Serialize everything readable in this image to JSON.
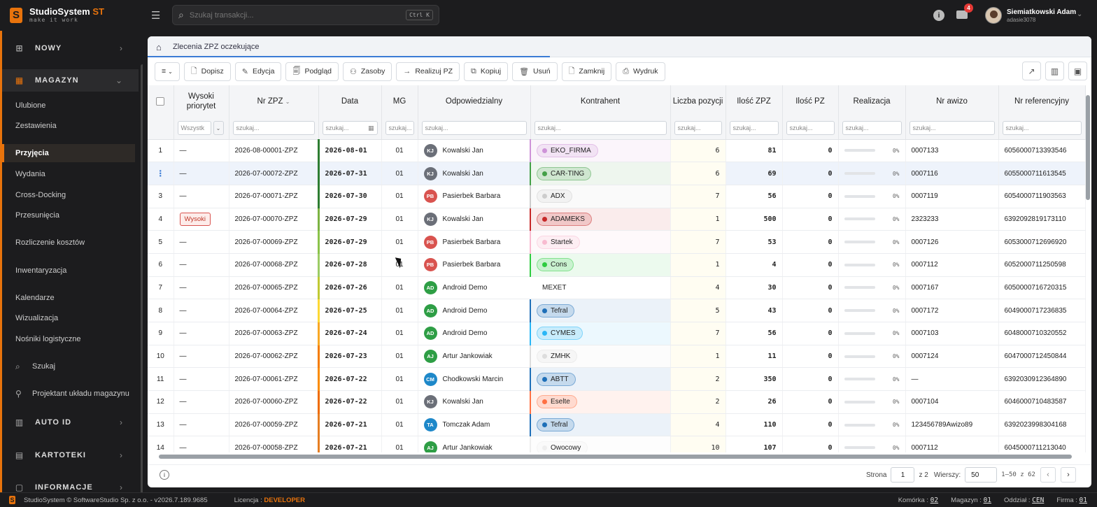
{
  "app": {
    "name": "StudioSystem",
    "name_suffix": "ST",
    "tagline": "make it work"
  },
  "search": {
    "placeholder": "Szukaj transakcji...",
    "shortcut": "Ctrl K"
  },
  "user": {
    "name": "Siemiatkowski Adam",
    "login": "adasie3078",
    "notifications": "4"
  },
  "sidebar": {
    "nowy": "NOWY",
    "magazyn": "MAGAZYN",
    "items": [
      "Ulubione",
      "Zestawienia",
      "Przyjęcia",
      "Wydania",
      "Cross-Docking",
      "Przesunięcia",
      "Rozliczenie kosztów",
      "Inwentaryzacja",
      "Kalendarze",
      "Wizualizacja",
      "Nośniki logistyczne",
      "Szukaj",
      "Projektant układu magazynu"
    ],
    "auto_id": "AUTO ID",
    "kartoteki": "KARTOTEKI",
    "informacje": "INFORMACJE"
  },
  "tab": {
    "title": "Zlecenia ZPZ oczekujące"
  },
  "toolbar": {
    "dopisz": "Dopisz",
    "edycja": "Edycja",
    "podglad": "Podgląd",
    "zasoby": "Zasoby",
    "realizuj": "Realizuj PZ",
    "kopiuj": "Kopiuj",
    "usun": "Usuń",
    "zamknij": "Zamknij",
    "wydruk": "Wydruk"
  },
  "columns": {
    "priority": "Wysoki priorytet",
    "nr": "Nr ZPZ",
    "date": "Data",
    "mg": "MG",
    "resp": "Odpowiedzialny",
    "contractor": "Kontrahent",
    "positions": "Liczba pozycji",
    "qty_zpz": "Ilość ZPZ",
    "qty_pz": "Ilość PZ",
    "realization": "Realizacja",
    "awizo": "Nr awizo",
    "ref": "Nr referencyjny"
  },
  "filters": {
    "all": "Wszystk",
    "placeholder": "szukaj..."
  },
  "rows": [
    {
      "n": "1",
      "prio": "—",
      "nr": "2026-08-00001-ZPZ",
      "date": "2026-08-01",
      "mg": "01",
      "ini": "KJ",
      "person": "Kowalski Jan",
      "firm": "EKO_FIRMA",
      "pos": "6",
      "zpz": "81",
      "pz": "0",
      "pct": "0%",
      "awizo": "0007133",
      "ref": "6056000713393546"
    },
    {
      "n": "⋮",
      "prio": "—",
      "nr": "2026-07-00072-ZPZ",
      "date": "2026-07-31",
      "mg": "01",
      "ini": "KJ",
      "person": "Kowalski Jan",
      "firm": "CAR-TING",
      "pos": "6",
      "zpz": "69",
      "pz": "0",
      "pct": "0%",
      "awizo": "0007116",
      "ref": "6055000711613545"
    },
    {
      "n": "3",
      "prio": "—",
      "nr": "2026-07-00071-ZPZ",
      "date": "2026-07-30",
      "mg": "01",
      "ini": "PB",
      "person": "Pasierbek Barbara",
      "firm": "ADX",
      "pos": "7",
      "zpz": "56",
      "pz": "0",
      "pct": "0%",
      "awizo": "0007119",
      "ref": "6054000711903563"
    },
    {
      "n": "4",
      "prio": "Wysoki",
      "nr": "2026-07-00070-ZPZ",
      "date": "2026-07-29",
      "mg": "01",
      "ini": "KJ",
      "person": "Kowalski Jan",
      "firm": "ADAMEKS",
      "pos": "1",
      "zpz": "500",
      "pz": "0",
      "pct": "0%",
      "awizo": "2323233",
      "ref": "6392092819173110"
    },
    {
      "n": "5",
      "prio": "—",
      "nr": "2026-07-00069-ZPZ",
      "date": "2026-07-29",
      "mg": "01",
      "ini": "PB",
      "person": "Pasierbek Barbara",
      "firm": "Startek",
      "pos": "7",
      "zpz": "53",
      "pz": "0",
      "pct": "0%",
      "awizo": "0007126",
      "ref": "6053000712696920"
    },
    {
      "n": "6",
      "prio": "—",
      "nr": "2026-07-00068-ZPZ",
      "date": "2026-07-28",
      "mg": "01",
      "ini": "PB",
      "person": "Pasierbek Barbara",
      "firm": "Cons",
      "pos": "1",
      "zpz": "4",
      "pz": "0",
      "pct": "0%",
      "awizo": "0007112",
      "ref": "6052000711250598"
    },
    {
      "n": "7",
      "prio": "—",
      "nr": "2026-07-00065-ZPZ",
      "date": "2026-07-26",
      "mg": "01",
      "ini": "AD",
      "person": "Android Demo",
      "firm": "MEXET",
      "pos": "4",
      "zpz": "30",
      "pz": "0",
      "pct": "0%",
      "awizo": "0007167",
      "ref": "6050000716720315"
    },
    {
      "n": "8",
      "prio": "—",
      "nr": "2026-07-00064-ZPZ",
      "date": "2026-07-25",
      "mg": "01",
      "ini": "AD",
      "person": "Android Demo",
      "firm": "Tefral",
      "pos": "5",
      "zpz": "43",
      "pz": "0",
      "pct": "0%",
      "awizo": "0007172",
      "ref": "6049000717236835"
    },
    {
      "n": "9",
      "prio": "—",
      "nr": "2026-07-00063-ZPZ",
      "date": "2026-07-24",
      "mg": "01",
      "ini": "AD",
      "person": "Android Demo",
      "firm": "CYMES",
      "pos": "7",
      "zpz": "56",
      "pz": "0",
      "pct": "0%",
      "awizo": "0007103",
      "ref": "6048000710320552"
    },
    {
      "n": "10",
      "prio": "—",
      "nr": "2026-07-00062-ZPZ",
      "date": "2026-07-23",
      "mg": "01",
      "ini": "AJ",
      "person": "Artur Jankowiak",
      "firm": "ZMHK",
      "pos": "1",
      "zpz": "11",
      "pz": "0",
      "pct": "0%",
      "awizo": "0007124",
      "ref": "6047000712450844"
    },
    {
      "n": "11",
      "prio": "—",
      "nr": "2026-07-00061-ZPZ",
      "date": "2026-07-22",
      "mg": "01",
      "ini": "CM",
      "person": "Chodkowski Marcin",
      "firm": "ABTT",
      "pos": "2",
      "zpz": "350",
      "pz": "0",
      "pct": "0%",
      "awizo": "—",
      "ref": "6392030912364890"
    },
    {
      "n": "12",
      "prio": "—",
      "nr": "2026-07-00060-ZPZ",
      "date": "2026-07-22",
      "mg": "01",
      "ini": "KJ",
      "person": "Kowalski Jan",
      "firm": "Eselte",
      "pos": "2",
      "zpz": "26",
      "pz": "0",
      "pct": "0%",
      "awizo": "0007104",
      "ref": "6046000710483587"
    },
    {
      "n": "13",
      "prio": "—",
      "nr": "2026-07-00059-ZPZ",
      "date": "2026-07-21",
      "mg": "01",
      "ini": "TA",
      "person": "Tomczak Adam",
      "firm": "Tefral",
      "pos": "4",
      "zpz": "110",
      "pz": "0",
      "pct": "0%",
      "awizo": "123456789Awizo89",
      "ref": "6392023998304168"
    },
    {
      "n": "14",
      "prio": "—",
      "nr": "2026-07-00058-ZPZ",
      "date": "2026-07-21",
      "mg": "01",
      "ini": "AJ",
      "person": "Artur Jankowiak",
      "firm": "Owocowy",
      "pos": "10",
      "zpz": "107",
      "pz": "0",
      "pct": "0%",
      "awizo": "0007112",
      "ref": "6045000711213040"
    }
  ],
  "firm_colors": {
    "EKO_FIRMA": "#ce93d8",
    "CAR-TING": "#43a047",
    "ADX": "#cccccc",
    "ADAMEKS": "#c62828",
    "Startek": "#f8bbd0",
    "Cons": "#2ecc40",
    "MEXET": "",
    "Tefral": "#1e6fb8",
    "CYMES": "#29b6f6",
    "ZMHK": "#dddddd",
    "ABTT": "#1e6fb8",
    "Eselte": "#ff7043",
    "Owocowy": "#eeeeee"
  },
  "avatar_colors": {
    "KJ": "#6b6f78",
    "PB": "#d9534f",
    "AD": "#2e9e45",
    "AJ": "#2e9e45",
    "CM": "#1e88c9",
    "TA": "#1e88c9"
  },
  "pager": {
    "page_label": "Strona",
    "page": "1",
    "of": "z 2",
    "rows_label": "Wierszy:",
    "rows": "50",
    "range": "1–50 z 62"
  },
  "status": {
    "copyright": "StudioSystem © SoftwareStudio Sp. z o.o. - v2026.7.189.9685",
    "license_label": "Licencja :",
    "license": "DEVELOPER",
    "cell_label": "Komórka :",
    "cell": "02",
    "wh_label": "Magazyn :",
    "wh": "01",
    "dept_label": "Oddział :",
    "dept": "CEN",
    "firm_label": "Firma :",
    "firm": "01"
  }
}
